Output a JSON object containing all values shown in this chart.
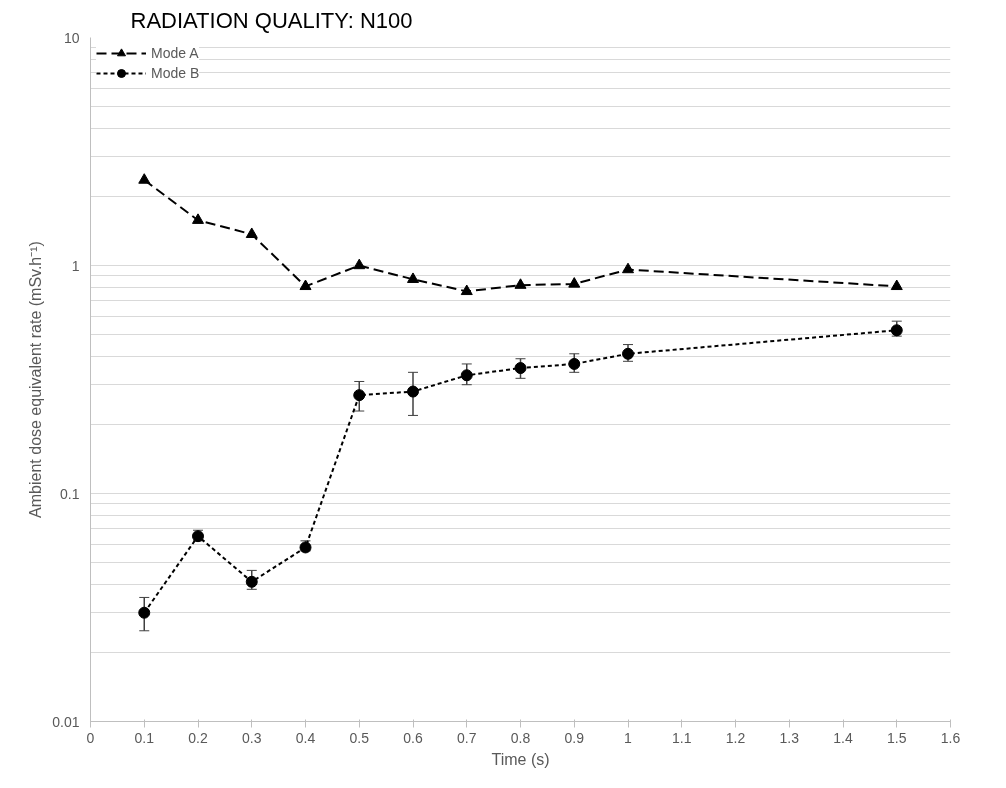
{
  "chart_data": {
    "type": "line",
    "title": "RADIATION QUALITY: N100",
    "xlabel": "Time (s)",
    "ylabel": "Ambient dose equivalent rate (mSv.h⁻¹)",
    "x": [
      0.1,
      0.2,
      0.3,
      0.4,
      0.5,
      0.6,
      0.7,
      0.8,
      0.9,
      1.0,
      1.5
    ],
    "series": [
      {
        "name": "Mode A",
        "color": "#000000",
        "marker": "triangle",
        "line_style": "dashed",
        "values": [
          2.37,
          1.58,
          1.37,
          0.81,
          1.0,
          0.87,
          0.77,
          0.82,
          0.83,
          0.96,
          0.81
        ]
      },
      {
        "name": "Mode B",
        "color": "#000000",
        "marker": "circle",
        "line_style": "dotted",
        "values": [
          0.03,
          0.065,
          0.041,
          0.058,
          0.27,
          0.28,
          0.33,
          0.355,
          0.37,
          0.41,
          0.52
        ],
        "errors": [
          [
            0.025,
            0.035
          ],
          [
            0.062,
            0.069
          ],
          [
            0.038,
            0.046
          ],
          [
            0.056,
            0.062
          ],
          [
            0.23,
            0.31
          ],
          [
            0.22,
            0.34
          ],
          [
            0.3,
            0.37
          ],
          [
            0.32,
            0.39
          ],
          [
            0.34,
            0.41
          ],
          [
            0.38,
            0.45
          ],
          [
            0.49,
            0.57
          ]
        ]
      }
    ],
    "log": "y",
    "xlim": [
      0,
      1.6
    ],
    "xticks": [
      0,
      0.1,
      0.2,
      0.3,
      0.4,
      0.5,
      0.6,
      0.7,
      0.8,
      0.9,
      1,
      1.1,
      1.2,
      1.3,
      1.4,
      1.5,
      1.6
    ],
    "ylim": [
      0.01,
      10
    ],
    "yticks": [
      0.01,
      0.1,
      1,
      10
    ],
    "grid": "y",
    "legend": "top left"
  }
}
